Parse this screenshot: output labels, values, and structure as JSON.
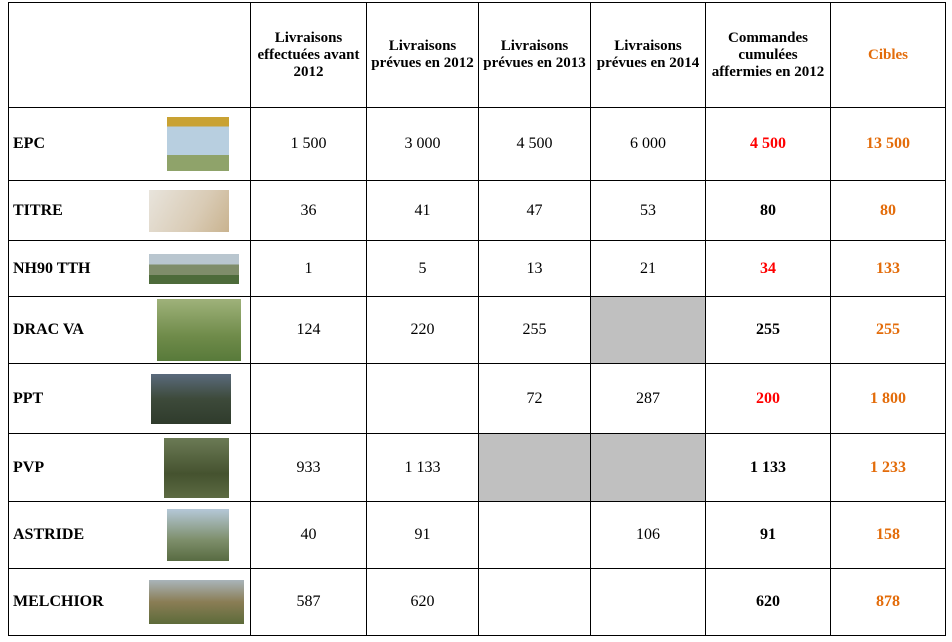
{
  "table": {
    "header": [
      "Livraisons effectuées avant 2012",
      "Livraisons prévues en 2012",
      "Livraisons prévues en 2013",
      "Livraisons prévues en 2014",
      "Commandes cumulées affermies en 2012",
      "Cibles"
    ],
    "rows": [
      {
        "label": "EPC",
        "cells": [
          "1 500",
          "3 000",
          "4 500",
          "6 000",
          "4 500",
          "13 500"
        ]
      },
      {
        "label": "TITRE",
        "cells": [
          "36",
          "41",
          "47",
          "53",
          "80",
          "80"
        ]
      },
      {
        "label": "NH90 TTH",
        "cells": [
          "1",
          "5",
          "13",
          "21",
          "34",
          "133"
        ]
      },
      {
        "label": "DRAC VA",
        "cells": [
          "124",
          "220",
          "255",
          null,
          "255",
          "255"
        ]
      },
      {
        "label": "PPT",
        "cells": [
          null,
          null,
          "72",
          "287",
          "200",
          "1 800"
        ]
      },
      {
        "label": "PVP",
        "cells": [
          "933",
          "1 133",
          null,
          null,
          "1 133",
          "1 233"
        ]
      },
      {
        "label": "ASTRIDE",
        "cells": [
          "40",
          "91",
          null,
          "106",
          "91",
          "158"
        ]
      },
      {
        "label": "MELCHIOR",
        "cells": [
          "587",
          "620",
          null,
          null,
          "620",
          "878"
        ]
      }
    ]
  }
}
